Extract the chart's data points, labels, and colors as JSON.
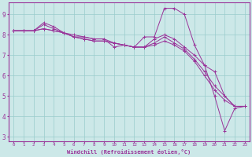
{
  "xlabel": "Windchill (Refroidissement éolien,°C)",
  "bg_color": "#cce8e8",
  "line_color": "#993399",
  "grid_color": "#99cccc",
  "xlim": [
    -0.5,
    23.5
  ],
  "ylim": [
    2.8,
    9.6
  ],
  "yticks": [
    3,
    4,
    5,
    6,
    7,
    8,
    9
  ],
  "xticks": [
    0,
    1,
    2,
    3,
    4,
    5,
    6,
    7,
    8,
    9,
    10,
    11,
    12,
    13,
    14,
    15,
    16,
    17,
    18,
    19,
    20,
    21,
    22,
    23
  ],
  "series": [
    [
      8.2,
      8.2,
      8.2,
      8.5,
      8.3,
      8.1,
      8.0,
      7.9,
      7.8,
      7.8,
      7.4,
      7.5,
      7.4,
      7.9,
      7.9,
      9.3,
      9.3,
      9.0,
      7.5,
      6.5,
      5.0,
      3.3,
      4.4,
      4.5
    ],
    [
      8.2,
      8.2,
      8.2,
      8.6,
      8.4,
      8.1,
      7.9,
      7.9,
      7.8,
      7.8,
      7.6,
      7.5,
      7.4,
      7.4,
      7.8,
      8.0,
      7.8,
      7.4,
      7.0,
      6.5,
      6.2,
      5.0,
      4.5,
      4.5
    ],
    [
      8.2,
      8.2,
      8.2,
      8.3,
      8.2,
      8.1,
      7.9,
      7.8,
      7.7,
      7.7,
      7.6,
      7.5,
      7.4,
      7.4,
      7.6,
      7.9,
      7.6,
      7.3,
      6.8,
      6.2,
      5.5,
      5.0,
      4.5,
      4.5
    ],
    [
      8.2,
      8.2,
      8.2,
      8.3,
      8.2,
      8.1,
      7.9,
      7.8,
      7.7,
      7.7,
      7.6,
      7.5,
      7.4,
      7.4,
      7.5,
      7.7,
      7.5,
      7.2,
      6.7,
      6.0,
      5.3,
      4.8,
      4.5,
      4.5
    ]
  ],
  "xlabel_fontsize": 5.0,
  "xtick_fontsize": 4.2,
  "ytick_fontsize": 5.5
}
